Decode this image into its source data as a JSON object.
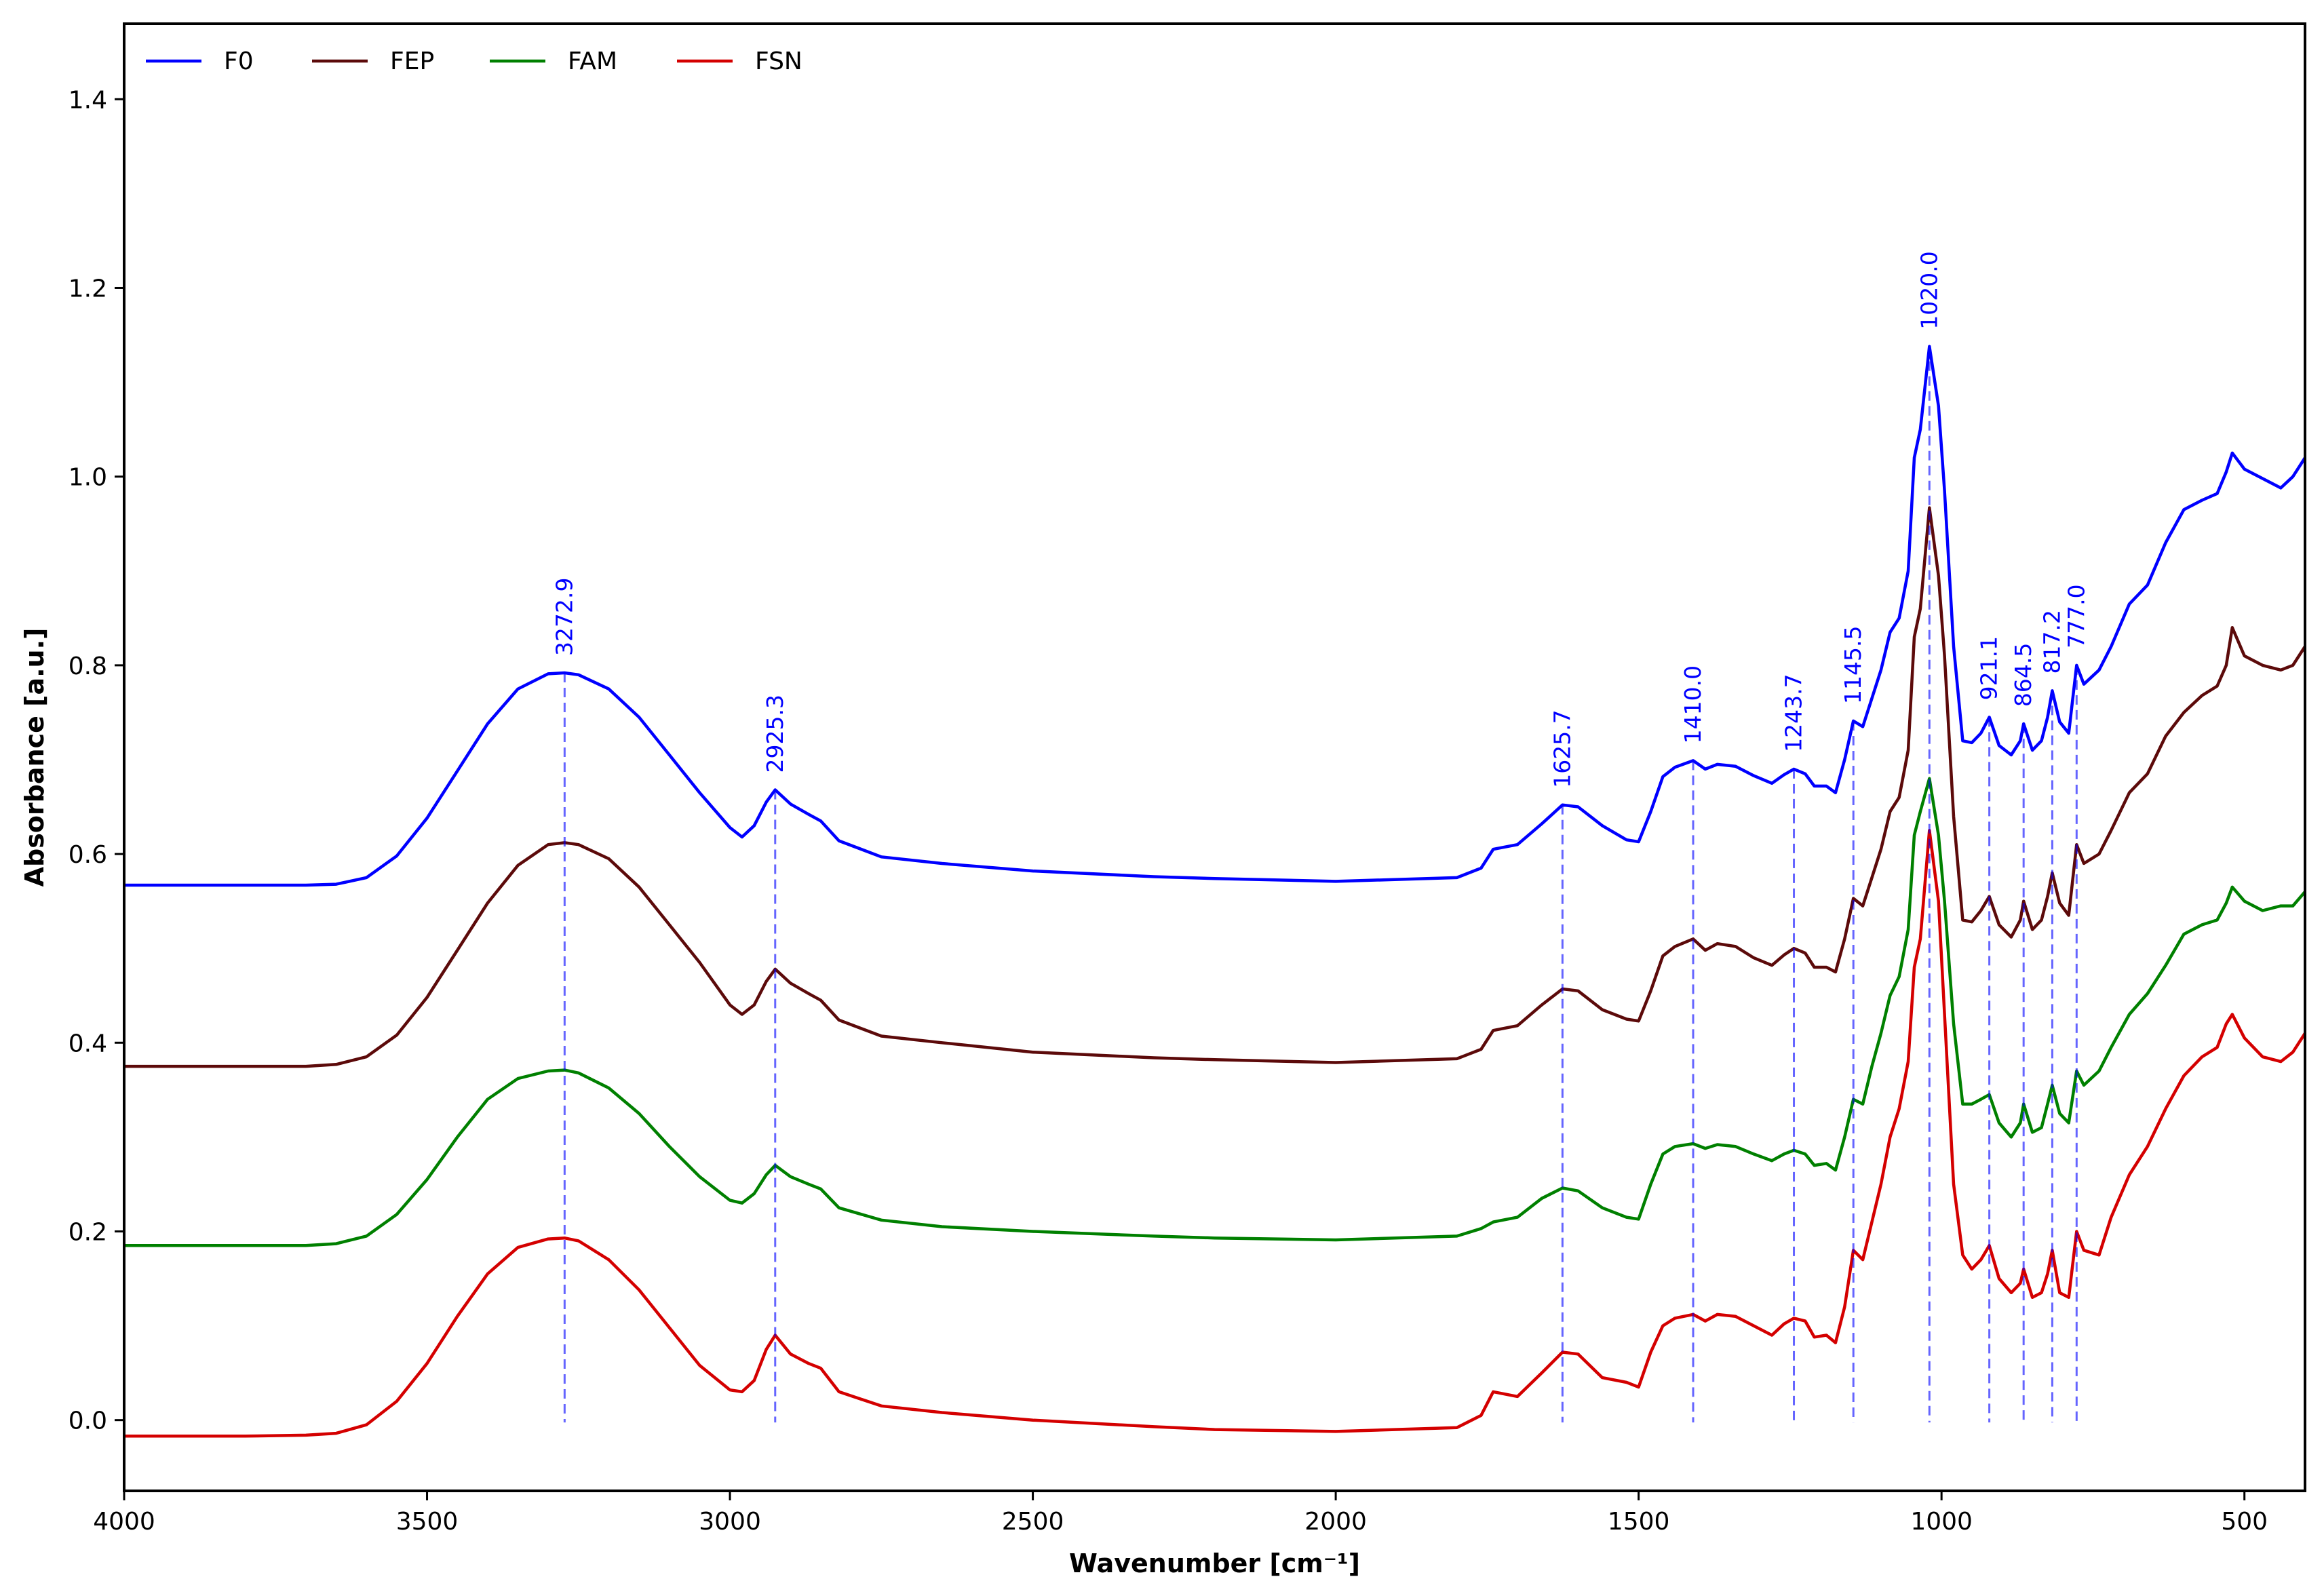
{
  "chart_data": {
    "type": "line",
    "title": "",
    "xlabel": "Wavenumber [cm⁻¹]",
    "ylabel": "Absorbance [a.u.]",
    "xlim": [
      4000,
      400
    ],
    "ylim": [
      -0.075,
      1.48
    ],
    "x_reversed": true,
    "grid": false,
    "legend_position": "top-left",
    "xticks": [
      {
        "value": 4000,
        "label": "4000"
      },
      {
        "value": 3500,
        "label": "3500"
      },
      {
        "value": 3000,
        "label": "3000"
      },
      {
        "value": 2500,
        "label": "2500"
      },
      {
        "value": 2000,
        "label": "2000"
      },
      {
        "value": 1500,
        "label": "1500"
      },
      {
        "value": 1000,
        "label": "1000"
      },
      {
        "value": 500,
        "label": "500"
      }
    ],
    "yticks": [
      {
        "value": 0.0,
        "label": "0.0"
      },
      {
        "value": 0.2,
        "label": "0.2"
      },
      {
        "value": 0.4,
        "label": "0.4"
      },
      {
        "value": 0.6,
        "label": "0.6"
      },
      {
        "value": 0.8,
        "label": "0.8"
      },
      {
        "value": 1.0,
        "label": "1.0"
      },
      {
        "value": 1.2,
        "label": "1.2"
      },
      {
        "value": 1.4,
        "label": "1.4"
      }
    ],
    "series": [
      {
        "name": "F0",
        "color": "#0000ff",
        "x": [
          4000,
          3800,
          3700,
          3650,
          3600,
          3550,
          3500,
          3450,
          3400,
          3350,
          3300,
          3272.9,
          3250,
          3200,
          3150,
          3100,
          3050,
          3000,
          2980,
          2960,
          2940,
          2925.3,
          2900,
          2870,
          2850,
          2820,
          2750,
          2650,
          2500,
          2300,
          2200,
          2000,
          1800,
          1760,
          1740,
          1700,
          1660,
          1625.7,
          1600,
          1560,
          1520,
          1500,
          1480,
          1460,
          1440,
          1410,
          1390,
          1370,
          1340,
          1310,
          1280,
          1260,
          1243.7,
          1225,
          1210,
          1190,
          1175,
          1160,
          1145.5,
          1130,
          1115,
          1100,
          1085,
          1070,
          1055,
          1045,
          1035,
          1020,
          1005,
          995,
          980,
          965,
          950,
          935,
          921.1,
          905,
          885,
          870,
          864.5,
          850,
          835,
          825,
          817.2,
          805,
          790,
          777,
          765,
          740,
          720,
          690,
          660,
          630,
          600,
          570,
          545,
          530,
          520,
          500,
          470,
          440,
          420,
          400
        ],
        "y": [
          0.567,
          0.567,
          0.567,
          0.568,
          0.575,
          0.598,
          0.638,
          0.688,
          0.738,
          0.775,
          0.791,
          0.792,
          0.79,
          0.775,
          0.745,
          0.705,
          0.665,
          0.628,
          0.618,
          0.63,
          0.655,
          0.668,
          0.653,
          0.642,
          0.635,
          0.614,
          0.597,
          0.59,
          0.582,
          0.576,
          0.574,
          0.571,
          0.575,
          0.585,
          0.605,
          0.61,
          0.632,
          0.652,
          0.65,
          0.63,
          0.615,
          0.613,
          0.645,
          0.682,
          0.692,
          0.699,
          0.69,
          0.695,
          0.693,
          0.683,
          0.675,
          0.684,
          0.69,
          0.685,
          0.672,
          0.672,
          0.665,
          0.7,
          0.741,
          0.735,
          0.765,
          0.795,
          0.835,
          0.85,
          0.9,
          1.02,
          1.05,
          1.138,
          1.075,
          0.985,
          0.82,
          0.72,
          0.718,
          0.728,
          0.745,
          0.715,
          0.705,
          0.72,
          0.738,
          0.71,
          0.72,
          0.745,
          0.773,
          0.74,
          0.728,
          0.8,
          0.78,
          0.795,
          0.82,
          0.865,
          0.885,
          0.93,
          0.965,
          0.975,
          0.982,
          1.005,
          1.025,
          1.008,
          0.998,
          0.988,
          1.0,
          1.02
        ]
      },
      {
        "name": "FEP",
        "color": "#5c0a0a",
        "x": [
          4000,
          3800,
          3700,
          3650,
          3600,
          3550,
          3500,
          3450,
          3400,
          3350,
          3300,
          3272.9,
          3250,
          3200,
          3150,
          3100,
          3050,
          3000,
          2980,
          2960,
          2940,
          2925.3,
          2900,
          2870,
          2850,
          2820,
          2750,
          2650,
          2500,
          2300,
          2200,
          2000,
          1800,
          1760,
          1740,
          1700,
          1660,
          1625.7,
          1600,
          1560,
          1520,
          1500,
          1480,
          1460,
          1440,
          1410,
          1390,
          1370,
          1340,
          1310,
          1280,
          1260,
          1243.7,
          1225,
          1210,
          1190,
          1175,
          1160,
          1145.5,
          1130,
          1115,
          1100,
          1085,
          1070,
          1055,
          1045,
          1035,
          1020,
          1005,
          995,
          980,
          965,
          950,
          935,
          921.1,
          905,
          885,
          870,
          864.5,
          850,
          835,
          825,
          817.2,
          805,
          790,
          777,
          765,
          740,
          720,
          690,
          660,
          630,
          600,
          570,
          545,
          530,
          520,
          500,
          470,
          440,
          420,
          400
        ],
        "y": [
          0.375,
          0.375,
          0.375,
          0.377,
          0.385,
          0.408,
          0.448,
          0.498,
          0.548,
          0.588,
          0.61,
          0.612,
          0.61,
          0.595,
          0.565,
          0.525,
          0.485,
          0.44,
          0.43,
          0.44,
          0.465,
          0.478,
          0.463,
          0.452,
          0.445,
          0.424,
          0.407,
          0.4,
          0.39,
          0.384,
          0.382,
          0.379,
          0.383,
          0.393,
          0.413,
          0.418,
          0.44,
          0.457,
          0.455,
          0.435,
          0.425,
          0.423,
          0.455,
          0.492,
          0.502,
          0.51,
          0.498,
          0.505,
          0.502,
          0.49,
          0.482,
          0.493,
          0.5,
          0.495,
          0.48,
          0.48,
          0.475,
          0.51,
          0.553,
          0.545,
          0.575,
          0.605,
          0.645,
          0.66,
          0.71,
          0.83,
          0.86,
          0.967,
          0.895,
          0.81,
          0.64,
          0.53,
          0.528,
          0.54,
          0.555,
          0.525,
          0.512,
          0.53,
          0.55,
          0.52,
          0.53,
          0.555,
          0.58,
          0.548,
          0.535,
          0.61,
          0.59,
          0.6,
          0.625,
          0.665,
          0.685,
          0.725,
          0.75,
          0.768,
          0.778,
          0.8,
          0.84,
          0.81,
          0.8,
          0.795,
          0.8,
          0.82
        ]
      },
      {
        "name": "FAM",
        "color": "#008000",
        "x": [
          4000,
          3800,
          3700,
          3650,
          3600,
          3550,
          3500,
          3450,
          3400,
          3350,
          3300,
          3272.9,
          3250,
          3200,
          3150,
          3100,
          3050,
          3000,
          2980,
          2960,
          2940,
          2925.3,
          2900,
          2870,
          2850,
          2820,
          2750,
          2650,
          2500,
          2300,
          2200,
          2000,
          1800,
          1760,
          1740,
          1700,
          1660,
          1625.7,
          1600,
          1560,
          1520,
          1500,
          1480,
          1460,
          1440,
          1410,
          1390,
          1370,
          1340,
          1310,
          1280,
          1260,
          1243.7,
          1225,
          1210,
          1190,
          1175,
          1160,
          1145.5,
          1130,
          1115,
          1100,
          1085,
          1070,
          1055,
          1045,
          1035,
          1020,
          1005,
          995,
          980,
          965,
          950,
          935,
          921.1,
          905,
          885,
          870,
          864.5,
          850,
          835,
          825,
          817.2,
          805,
          790,
          777,
          765,
          740,
          720,
          690,
          660,
          630,
          600,
          570,
          545,
          530,
          520,
          500,
          470,
          440,
          420,
          400
        ],
        "y": [
          0.185,
          0.185,
          0.185,
          0.187,
          0.195,
          0.218,
          0.255,
          0.3,
          0.34,
          0.362,
          0.37,
          0.371,
          0.368,
          0.352,
          0.325,
          0.29,
          0.258,
          0.233,
          0.23,
          0.24,
          0.26,
          0.27,
          0.258,
          0.25,
          0.245,
          0.225,
          0.212,
          0.205,
          0.2,
          0.195,
          0.193,
          0.191,
          0.195,
          0.203,
          0.21,
          0.215,
          0.235,
          0.246,
          0.243,
          0.225,
          0.215,
          0.213,
          0.25,
          0.282,
          0.29,
          0.293,
          0.288,
          0.292,
          0.29,
          0.282,
          0.275,
          0.282,
          0.286,
          0.282,
          0.27,
          0.272,
          0.265,
          0.3,
          0.34,
          0.335,
          0.375,
          0.41,
          0.45,
          0.47,
          0.52,
          0.62,
          0.645,
          0.68,
          0.62,
          0.55,
          0.42,
          0.335,
          0.335,
          0.34,
          0.345,
          0.315,
          0.3,
          0.315,
          0.335,
          0.305,
          0.31,
          0.335,
          0.355,
          0.325,
          0.315,
          0.37,
          0.355,
          0.37,
          0.395,
          0.43,
          0.452,
          0.482,
          0.515,
          0.525,
          0.53,
          0.548,
          0.565,
          0.55,
          0.54,
          0.545,
          0.545,
          0.56
        ]
      },
      {
        "name": "FSN",
        "color": "#d40000",
        "x": [
          4000,
          3800,
          3700,
          3650,
          3600,
          3550,
          3500,
          3450,
          3400,
          3350,
          3300,
          3272.9,
          3250,
          3200,
          3150,
          3100,
          3050,
          3000,
          2980,
          2960,
          2940,
          2925.3,
          2900,
          2870,
          2850,
          2820,
          2750,
          2650,
          2500,
          2300,
          2200,
          2000,
          1800,
          1760,
          1740,
          1700,
          1660,
          1625.7,
          1600,
          1560,
          1520,
          1500,
          1480,
          1460,
          1440,
          1410,
          1390,
          1370,
          1340,
          1310,
          1280,
          1260,
          1243.7,
          1225,
          1210,
          1190,
          1175,
          1160,
          1145.5,
          1130,
          1115,
          1100,
          1085,
          1070,
          1055,
          1045,
          1035,
          1020,
          1005,
          995,
          980,
          965,
          950,
          935,
          921.1,
          905,
          885,
          870,
          864.5,
          850,
          835,
          825,
          817.2,
          805,
          790,
          777,
          765,
          740,
          720,
          690,
          660,
          630,
          600,
          570,
          545,
          530,
          520,
          500,
          470,
          440,
          420,
          400
        ],
        "y": [
          -0.017,
          -0.017,
          -0.016,
          -0.014,
          -0.005,
          0.02,
          0.06,
          0.11,
          0.155,
          0.183,
          0.192,
          0.193,
          0.19,
          0.17,
          0.138,
          0.098,
          0.058,
          0.032,
          0.03,
          0.042,
          0.075,
          0.09,
          0.07,
          0.06,
          0.055,
          0.03,
          0.015,
          0.008,
          0.0,
          -0.007,
          -0.01,
          -0.012,
          -0.008,
          0.005,
          0.03,
          0.025,
          0.05,
          0.072,
          0.07,
          0.045,
          0.04,
          0.035,
          0.072,
          0.1,
          0.108,
          0.112,
          0.105,
          0.112,
          0.11,
          0.1,
          0.09,
          0.102,
          0.108,
          0.105,
          0.088,
          0.09,
          0.082,
          0.12,
          0.18,
          0.17,
          0.21,
          0.25,
          0.3,
          0.33,
          0.38,
          0.48,
          0.51,
          0.625,
          0.55,
          0.43,
          0.25,
          0.175,
          0.16,
          0.17,
          0.185,
          0.15,
          0.135,
          0.145,
          0.16,
          0.13,
          0.135,
          0.155,
          0.18,
          0.135,
          0.13,
          0.2,
          0.18,
          0.175,
          0.215,
          0.26,
          0.29,
          0.33,
          0.365,
          0.385,
          0.395,
          0.42,
          0.43,
          0.405,
          0.385,
          0.38,
          0.39,
          0.41
        ]
      }
    ],
    "peak_markers": [
      {
        "x": 3272.9,
        "label": "3272.9"
      },
      {
        "x": 2925.3,
        "label": "2925.3"
      },
      {
        "x": 1625.7,
        "label": "1625.7"
      },
      {
        "x": 1410.0,
        "label": "1410.0"
      },
      {
        "x": 1243.7,
        "label": "1243.7"
      },
      {
        "x": 1145.5,
        "label": "1145.5"
      },
      {
        "x": 1020.0,
        "label": "1020.0"
      },
      {
        "x": 921.1,
        "label": "921.1"
      },
      {
        "x": 864.5,
        "label": "864.5"
      },
      {
        "x": 817.2,
        "label": "817.2"
      },
      {
        "x": 777.0,
        "label": "777.0"
      }
    ],
    "peak_marker_color": "#0000ff"
  }
}
